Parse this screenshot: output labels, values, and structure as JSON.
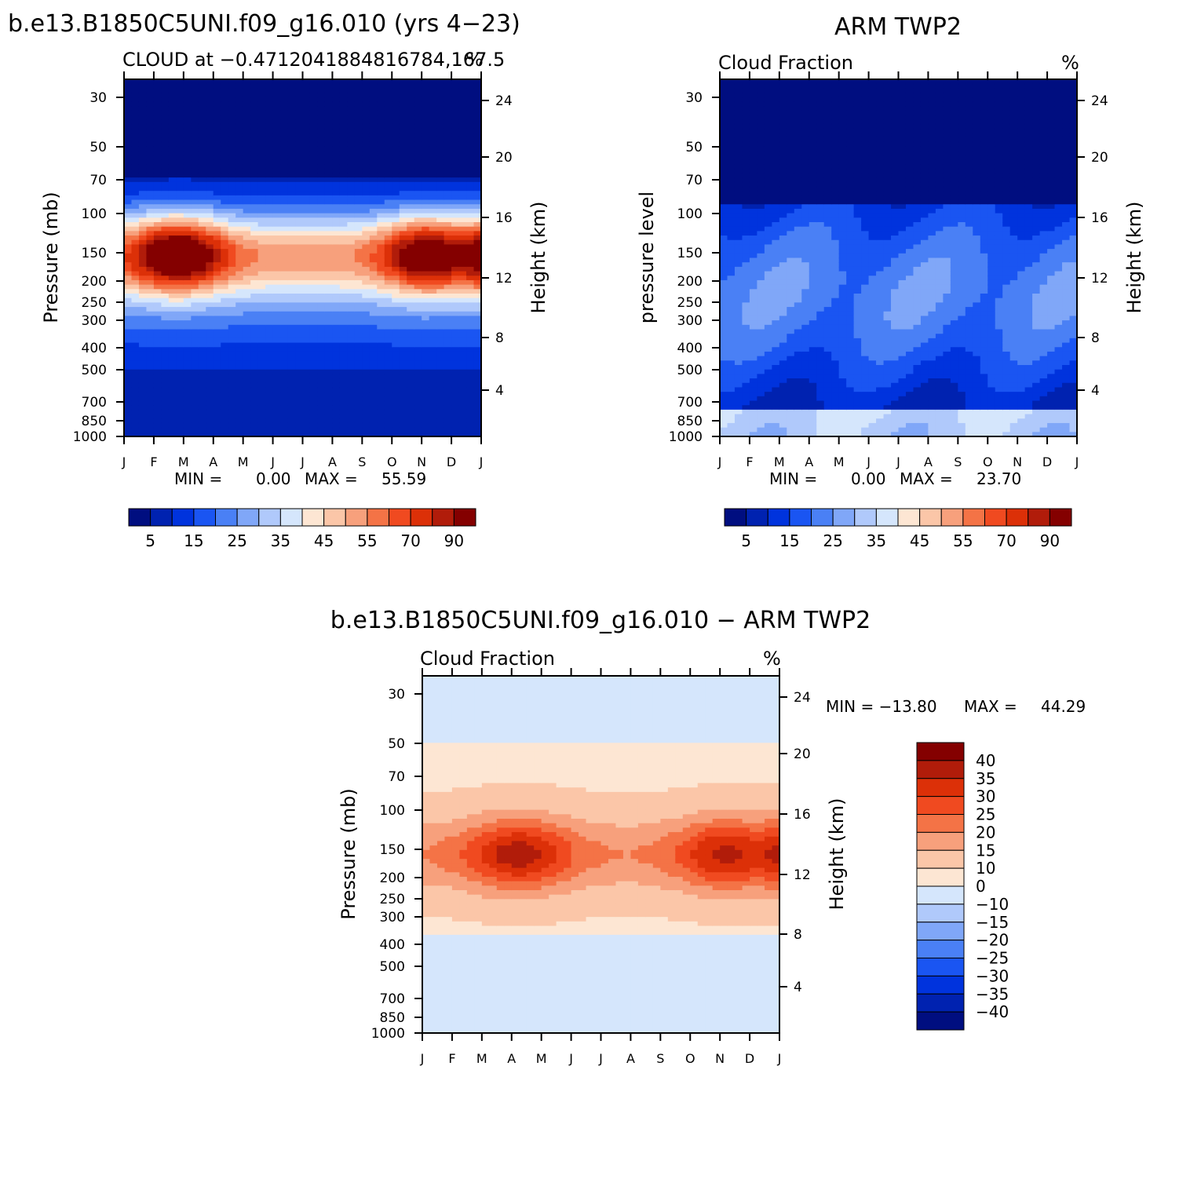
{
  "palette": {
    "cloud": [
      "#000e80",
      "#0022b0",
      "#0033dd",
      "#1a55f2",
      "#4a80f5",
      "#80a7f8",
      "#b0c9fb",
      "#d5e6fc",
      "#fde6d3",
      "#fbc6a8",
      "#f7a07c",
      "#f47346",
      "#f04a20",
      "#dc3008",
      "#b11c0a",
      "#840000"
    ],
    "diff": [
      "#000e80",
      "#0022b0",
      "#0033dd",
      "#1a55f2",
      "#4a80f5",
      "#80a7f8",
      "#b0c9fb",
      "#d5e6fc",
      "#fde6d3",
      "#fbc6a8",
      "#f7a07c",
      "#f47346",
      "#f04a20",
      "#dc3008",
      "#b11c0a",
      "#840000"
    ]
  },
  "chart_data": [
    {
      "type": "heatmap",
      "title": "b.e13.B1850C5UNI.f09_g16.010 (yrs 4−23)",
      "subtitle_left": "CLOUD at −0.4712041884816784,167.5",
      "subtitle_right": "%",
      "ylabel": "Pressure (mb)",
      "ylabel_right": "Height (km)",
      "x_ticks": [
        "J",
        "F",
        "M",
        "A",
        "M",
        "J",
        "J",
        "A",
        "S",
        "O",
        "N",
        "D",
        "J"
      ],
      "y_ticks": [
        "30",
        "50",
        "70",
        "100",
        "150",
        "200",
        "250",
        "300",
        "400",
        "500",
        "700",
        "850",
        "1000"
      ],
      "y_right_ticks": [
        "24",
        "20",
        "16",
        "12",
        "8",
        "4"
      ],
      "min_text": "MIN =",
      "min_value": "0.00",
      "max_text": "MAX =",
      "max_value": "55.59",
      "colorbar_labels": [
        "5",
        "15",
        "25",
        "35",
        "45",
        "55",
        "70",
        "90"
      ],
      "levels_profile": "model"
    },
    {
      "type": "heatmap",
      "title": "ARM TWP2",
      "subtitle_left": "Cloud Fraction",
      "subtitle_right": "%",
      "ylabel": "pressure level",
      "ylabel_right": "Height (km)",
      "x_ticks": [
        "J",
        "F",
        "M",
        "A",
        "M",
        "J",
        "J",
        "A",
        "S",
        "O",
        "N",
        "D",
        "J"
      ],
      "y_ticks": [
        "30",
        "50",
        "70",
        "100",
        "150",
        "200",
        "250",
        "300",
        "400",
        "500",
        "700",
        "850",
        "1000"
      ],
      "y_right_ticks": [
        "24",
        "20",
        "16",
        "12",
        "8",
        "4"
      ],
      "min_text": "MIN =",
      "min_value": "0.00",
      "max_text": "MAX =",
      "max_value": "23.70",
      "colorbar_labels": [
        "5",
        "15",
        "25",
        "35",
        "45",
        "55",
        "70",
        "90"
      ],
      "levels_profile": "obs"
    },
    {
      "type": "heatmap",
      "title": "b.e13.B1850C5UNI.f09_g16.010 − ARM TWP2",
      "subtitle_left": "Cloud Fraction",
      "subtitle_right": "%",
      "ylabel": "Pressure (mb)",
      "ylabel_right": "Height (km)",
      "x_ticks": [
        "J",
        "F",
        "M",
        "A",
        "M",
        "J",
        "J",
        "A",
        "S",
        "O",
        "N",
        "D",
        "J"
      ],
      "y_ticks": [
        "30",
        "50",
        "70",
        "100",
        "150",
        "200",
        "250",
        "300",
        "400",
        "500",
        "700",
        "850",
        "1000"
      ],
      "y_right_ticks": [
        "24",
        "20",
        "16",
        "12",
        "8",
        "4"
      ],
      "min_text": "MIN = −13.80",
      "max_text": "MAX =",
      "max_value": "44.29",
      "colorbar_labels": [
        "40",
        "35",
        "30",
        "25",
        "20",
        "15",
        "10",
        "0",
        "−10",
        "−15",
        "−20",
        "−25",
        "−30",
        "−35",
        "−40"
      ],
      "levels_profile": "diff"
    }
  ]
}
